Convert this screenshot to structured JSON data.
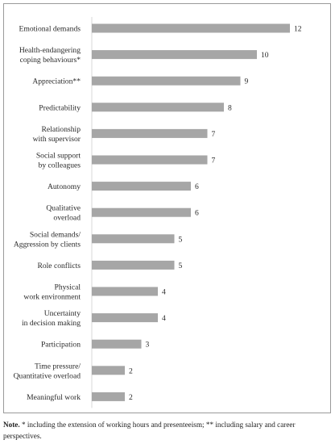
{
  "chart_data": {
    "type": "bar",
    "orientation": "horizontal",
    "bar_color": "#a6a6a6",
    "categories": [
      [
        "Emotional demands"
      ],
      [
        "Health-endangering",
        "coping behaviours*"
      ],
      [
        "Appreciation**"
      ],
      [
        "Predictability"
      ],
      [
        "Relationship",
        "with supervisor"
      ],
      [
        "Social support",
        "by colleagues"
      ],
      [
        "Autonomy"
      ],
      [
        "Qualitative",
        "overload"
      ],
      [
        "Social demands/",
        "Aggression by clients"
      ],
      [
        "Role conflicts"
      ],
      [
        "Physical",
        "work environment"
      ],
      [
        "Uncertainty",
        "in decision making"
      ],
      [
        "Participation"
      ],
      [
        "Time pressure/",
        "Quantitative overload"
      ],
      [
        "Meaningful work"
      ]
    ],
    "values": [
      12,
      10,
      9,
      8,
      7,
      7,
      6,
      6,
      5,
      5,
      4,
      4,
      3,
      2,
      2
    ],
    "xlim": [
      0,
      12
    ],
    "grid": false,
    "legend": "none"
  },
  "note": {
    "label": "Note.",
    "text": " * including the extension of working hours and presenteeism; ** including salary and career perspectives."
  }
}
